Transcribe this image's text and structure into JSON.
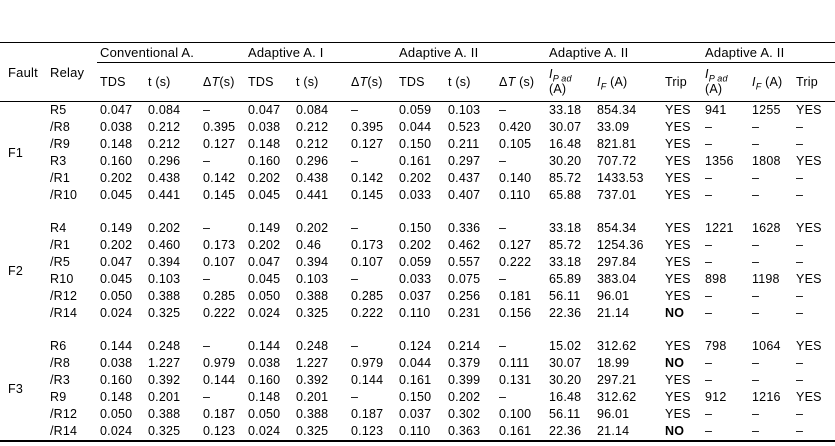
{
  "colors": {
    "background": "#ffffff",
    "text": "#000000",
    "rule": "#000000"
  },
  "table": {
    "fault_header": "Fault",
    "relay_header": "Relay",
    "group_headers": [
      {
        "label": "Conventional A."
      },
      {
        "label": "Adaptive A. I"
      },
      {
        "label": "Adaptive A. II"
      },
      {
        "label": "Adaptive A. II"
      },
      {
        "label": "Adaptive A. II"
      }
    ],
    "sub_headers": [
      {
        "id": "tds-conv",
        "plain": "TDS"
      },
      {
        "id": "t-conv",
        "plain": "t (s)"
      },
      {
        "id": "dt-conv",
        "pre": "Δ",
        "sym": "T",
        "unit": "(s)"
      },
      {
        "id": "tds-a1",
        "plain": "TDS"
      },
      {
        "id": "t-a1",
        "plain": "t (s)"
      },
      {
        "id": "dt-a1",
        "pre": "Δ",
        "sym": "T",
        "unit": "(s)"
      },
      {
        "id": "tds-a2",
        "plain": "TDS"
      },
      {
        "id": "t-a2",
        "plain": "t (s)"
      },
      {
        "id": "dt-a2",
        "pre": "Δ",
        "sym": "T",
        "unit": " (s)"
      },
      {
        "id": "ipad-1",
        "sym": "I",
        "sub": "P ad",
        "unit": "(A)",
        "unit_new_line": true
      },
      {
        "id": "if-1",
        "sym": "I",
        "sub": "F",
        "unit": " (A)"
      },
      {
        "id": "trip-1",
        "plain": "Trip"
      },
      {
        "id": "ipad-2",
        "sym": "I",
        "sub": "P ad",
        "unit": "(A)",
        "unit_new_line": true
      },
      {
        "id": "if-2",
        "sym": "I",
        "sub": "F",
        "unit": " (A)"
      },
      {
        "id": "trip-2",
        "plain": "Trip"
      }
    ],
    "fault_groups": [
      {
        "fault": "F1",
        "rows": [
          {
            "relay": "R5",
            "cells": [
              "0.047",
              "0.084",
              "–",
              "0.047",
              "0.084",
              "–",
              "0.059",
              "0.103",
              "–",
              "33.18",
              "854.34",
              "YES",
              "941",
              "1255",
              "YES"
            ]
          },
          {
            "relay": "/R8",
            "cells": [
              "0.038",
              "0.212",
              "0.395",
              "0.038",
              "0.212",
              "0.395",
              "0.044",
              "0.523",
              "0.420",
              "30.07",
              "33.09",
              "YES",
              "–",
              "–",
              "–"
            ]
          },
          {
            "relay": "/R9",
            "cells": [
              "0.148",
              "0.212",
              "0.127",
              "0.148",
              "0.212",
              "0.127",
              "0.150",
              "0.211",
              "0.105",
              "16.48",
              "821.81",
              "YES",
              "–",
              "–",
              "–"
            ]
          },
          {
            "relay": "R3",
            "cells": [
              "0.160",
              "0.296",
              "–",
              "0.160",
              "0.296",
              "–",
              "0.161",
              "0.297",
              "–",
              "30.20",
              "707.72",
              "YES",
              "1356",
              "1808",
              "YES"
            ]
          },
          {
            "relay": "/R1",
            "cells": [
              "0.202",
              "0.438",
              "0.142",
              "0.202",
              "0.438",
              "0.142",
              "0.202",
              "0.437",
              "0.140",
              "85.72",
              "1433.53",
              "YES",
              "–",
              "–",
              "–"
            ]
          },
          {
            "relay": "/R10",
            "cells": [
              "0.045",
              "0.441",
              "0.145",
              "0.045",
              "0.441",
              "0.145",
              "0.033",
              "0.407",
              "0.110",
              "65.88",
              "737.01",
              "YES",
              "–",
              "–",
              "–"
            ]
          }
        ]
      },
      {
        "fault": "F2",
        "rows": [
          {
            "relay": "R4",
            "cells": [
              "0.149",
              "0.202",
              "–",
              "0.149",
              "0.202",
              "–",
              "0.150",
              "0.336",
              "–",
              "33.18",
              "854.34",
              "YES",
              "1221",
              "1628",
              "YES"
            ]
          },
          {
            "relay": "/R1",
            "cells": [
              "0.202",
              "0.460",
              "0.173",
              "0.202",
              "0.46",
              "0.173",
              "0.202",
              "0.462",
              "0.127",
              "85.72",
              "1254.36",
              "YES",
              "–",
              "–",
              "–"
            ]
          },
          {
            "relay": "/R5",
            "cells": [
              "0.047",
              "0.394",
              "0.107",
              "0.047",
              "0.394",
              "0.107",
              "0.059",
              "0.557",
              "0.222",
              "33.18",
              "297.84",
              "YES",
              "–",
              "–",
              "–"
            ]
          },
          {
            "relay": "R10",
            "cells": [
              "0.045",
              "0.103",
              "–",
              "0.045",
              "0.103",
              "–",
              "0.033",
              "0.075",
              "–",
              "65.89",
              "383.04",
              "YES",
              "898",
              "1198",
              "YES"
            ]
          },
          {
            "relay": "/R12",
            "cells": [
              "0.050",
              "0.388",
              "0.285",
              "0.050",
              "0.388",
              "0.285",
              "0.037",
              "0.256",
              "0.181",
              "56.11",
              "96.01",
              "YES",
              "–",
              "–",
              "–"
            ]
          },
          {
            "relay": "/R14",
            "cells": [
              "0.024",
              "0.325",
              "0.222",
              "0.024",
              "0.325",
              "0.222",
              "0.110",
              "0.231",
              "0.156",
              "22.36",
              "21.14",
              "NO",
              "–",
              "–",
              "–"
            ]
          }
        ]
      },
      {
        "fault": "F3",
        "rows": [
          {
            "relay": "R6",
            "cells": [
              "0.144",
              "0.248",
              "–",
              "0.144",
              "0.248",
              "–",
              "0.124",
              "0.214",
              "–",
              "15.02",
              "312.62",
              "YES",
              "798",
              "1064",
              "YES"
            ]
          },
          {
            "relay": "/R8",
            "cells": [
              "0.038",
              "1.227",
              "0.979",
              "0.038",
              "1.227",
              "0.979",
              "0.044",
              "0.379",
              "0.111",
              "30.07",
              "18.99",
              "NO",
              "–",
              "–",
              "–"
            ]
          },
          {
            "relay": "/R3",
            "cells": [
              "0.160",
              "0.392",
              "0.144",
              "0.160",
              "0.392",
              "0.144",
              "0.161",
              "0.399",
              "0.131",
              "30.20",
              "297.21",
              "YES",
              "–",
              "–",
              "–"
            ]
          },
          {
            "relay": "R9",
            "cells": [
              "0.148",
              "0.201",
              "–",
              "0.148",
              "0.201",
              "–",
              "0.150",
              "0.202",
              "–",
              "16.48",
              "312.62",
              "YES",
              "912",
              "1216",
              "YES"
            ]
          },
          {
            "relay": "/R12",
            "cells": [
              "0.050",
              "0.388",
              "0.187",
              "0.050",
              "0.388",
              "0.187",
              "0.037",
              "0.302",
              "0.100",
              "56.11",
              "96.01",
              "YES",
              "–",
              "–",
              "–"
            ]
          },
          {
            "relay": "/R14",
            "cells": [
              "0.024",
              "0.325",
              "0.123",
              "0.024",
              "0.325",
              "0.123",
              "0.110",
              "0.363",
              "0.161",
              "22.36",
              "21.14",
              "NO",
              "–",
              "–",
              "–"
            ]
          }
        ]
      }
    ]
  }
}
